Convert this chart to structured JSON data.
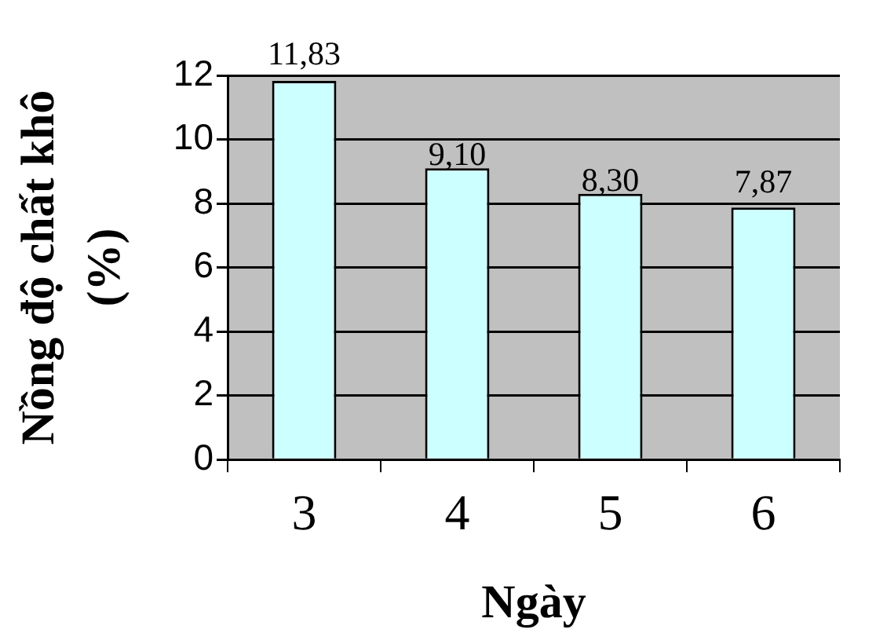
{
  "chart_data": {
    "type": "bar",
    "xlabel": "Ngày",
    "ylabel": "Nồng độ chất khô\n(%)",
    "categories": [
      "3",
      "4",
      "5",
      "6"
    ],
    "values": [
      11.83,
      9.1,
      8.3,
      7.87
    ],
    "color": "#ccffff",
    "value_labels": [
      "11,83",
      "9,10",
      "8,30",
      "7,87"
    ],
    "ylim": [
      0,
      12
    ],
    "yticks": [
      0,
      2,
      4,
      6,
      8,
      10,
      12
    ],
    "grid": "y"
  }
}
